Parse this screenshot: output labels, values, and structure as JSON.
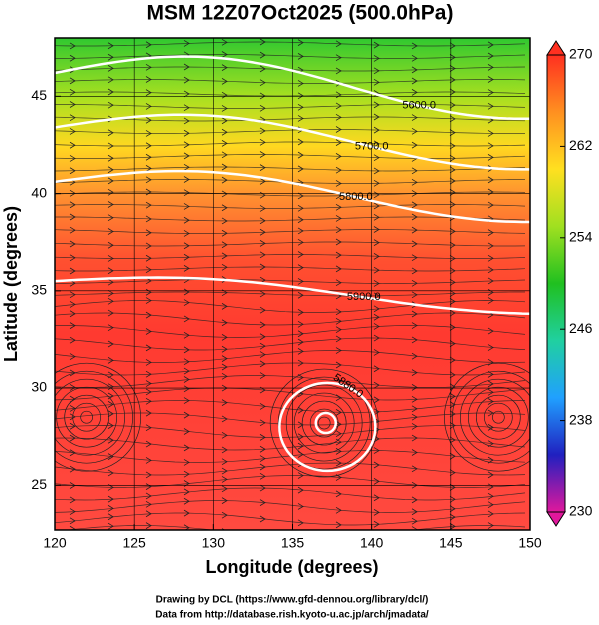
{
  "chart_data": {
    "type": "map",
    "title": "MSM 12Z07Oct2025 (500.0hPa)",
    "xlabel": "Longitude (degrees)",
    "ylabel": "Latitude  (degrees)",
    "xlim": [
      120,
      150
    ],
    "ylim": [
      22.7,
      48.0
    ],
    "xticks": [
      120,
      125,
      130,
      135,
      140,
      145,
      150
    ],
    "yticks": [
      25,
      30,
      35,
      40,
      45
    ],
    "grid": true,
    "contours": [
      {
        "value": 5600,
        "label": "5600.0"
      },
      {
        "value": 5700,
        "label": "5700.0"
      },
      {
        "value": 5800,
        "label": "5800.0"
      },
      {
        "value": 5900,
        "label": "5900.0"
      },
      {
        "value": 5880,
        "label": "5880.0"
      }
    ],
    "colorbar": {
      "lim": [
        230,
        270
      ],
      "ticks": [
        270,
        262,
        254,
        246,
        238,
        230
      ],
      "colors": [
        "#e0189c",
        "#2020c0",
        "#20a0ff",
        "#20d0a0",
        "#20c020",
        "#a0e020",
        "#ffe020",
        "#ff9020",
        "#ff3020"
      ]
    },
    "footer": [
      "Drawing by DCL (https://www.gfd-dennou.org/library/dcl/)",
      "Data from http://database.rish.kyoto-u.ac.jp/arch/jmadata/"
    ]
  }
}
